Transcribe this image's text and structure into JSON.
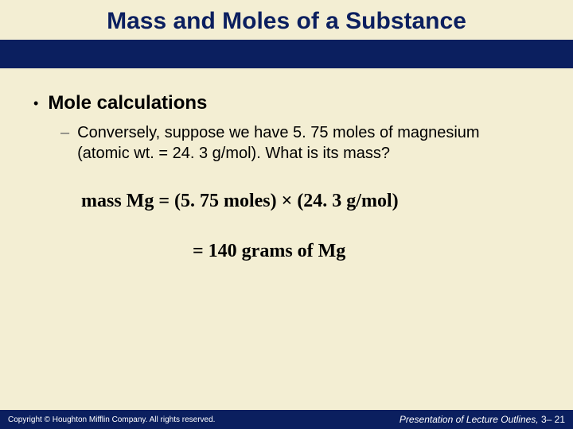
{
  "title": "Mass and Moles of a Substance",
  "bullets": {
    "l1": {
      "text": "Mole calculations"
    },
    "l2": {
      "text": "Conversely, suppose we have 5. 75 moles of magnesium (atomic wt. = 24. 3 g/mol). What is its mass?"
    }
  },
  "equations": {
    "line1": "mass Mg = (5. 75 moles) × (24. 3 g/mol)",
    "line2": "= 140  grams of Mg"
  },
  "footer": {
    "left": "Copyright © Houghton Mifflin Company. All rights reserved.",
    "right_italic": "Presentation of Lecture Outlines, ",
    "right_plain": "3– 21"
  },
  "style": {
    "background_color": "#f3eed3",
    "accent_bar_color": "#0b1f5f",
    "title_fontsize": 30,
    "title_color": "#0b1f5f",
    "l1_fontsize": 24,
    "l2_fontsize": 20,
    "eq_fontsize": 24,
    "eq_fontfamily": "Times New Roman",
    "footer_left_fontsize": 10,
    "footer_right_fontsize": 12,
    "footer_text_color": "#ffffff"
  }
}
